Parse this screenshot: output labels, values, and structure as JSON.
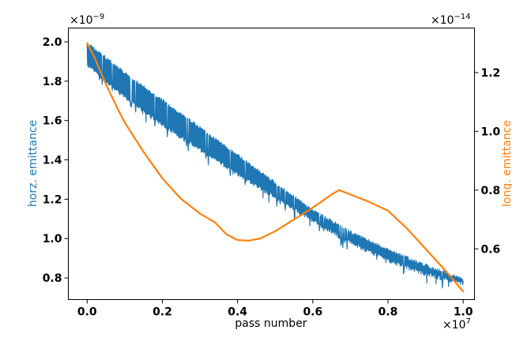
{
  "chart_data": {
    "type": "line",
    "xlabel": "pass number",
    "ylabel_left": "horz. emittance",
    "ylabel_right": "long. emittance",
    "x_multiplier": "×10",
    "x_multiplier_exp": "7",
    "y_left_multiplier": "×10",
    "y_left_multiplier_exp": "−9",
    "y_right_multiplier": "×10",
    "y_right_multiplier_exp": "−14",
    "xlim": [
      -0.05,
      1.03
    ],
    "ylim_left": [
      0.69,
      2.07
    ],
    "ylim_right": [
      0.4275,
      1.3515
    ],
    "x_ticks": [
      0.0,
      0.2,
      0.4,
      0.6,
      0.8,
      1.0
    ],
    "x_tick_labels": [
      "0.0",
      "0.2",
      "0.4",
      "0.6",
      "0.8",
      "1.0"
    ],
    "y_left_ticks": [
      0.8,
      1.0,
      1.2,
      1.4,
      1.6,
      1.8,
      2.0
    ],
    "y_left_tick_labels": [
      "0.8",
      "1.0",
      "1.2",
      "1.4",
      "1.6",
      "1.8",
      "2.0"
    ],
    "y_right_ticks": [
      0.6,
      0.8,
      1.0,
      1.2
    ],
    "y_right_tick_labels": [
      "0.6",
      "0.8",
      "1.0",
      "1.2"
    ],
    "series": [
      {
        "name": "horz. emittance",
        "axis": "left",
        "color": "#1f77b4",
        "style": "noisy band",
        "x": [
          0.0,
          0.1,
          0.2,
          0.3,
          0.4,
          0.5,
          0.6,
          0.7,
          0.8,
          0.9,
          1.0
        ],
        "upper": [
          2.0,
          1.85,
          1.71,
          1.57,
          1.43,
          1.29,
          1.15,
          1.04,
          0.95,
          0.87,
          0.8
        ],
        "lower": [
          1.87,
          1.71,
          1.57,
          1.44,
          1.32,
          1.2,
          1.08,
          0.97,
          0.88,
          0.81,
          0.76
        ]
      },
      {
        "name": "long. emittance",
        "axis": "right",
        "color": "#ff7f0e",
        "style": "line",
        "x": [
          0.0,
          0.02,
          0.05,
          0.08,
          0.1,
          0.15,
          0.2,
          0.25,
          0.3,
          0.34,
          0.37,
          0.4,
          0.43,
          0.46,
          0.5,
          0.55,
          0.6,
          0.65,
          0.67,
          0.7,
          0.75,
          0.8,
          0.85,
          0.9,
          0.95,
          1.0
        ],
        "values": [
          1.3,
          1.25,
          1.16,
          1.08,
          1.03,
          0.93,
          0.84,
          0.77,
          0.72,
          0.69,
          0.65,
          0.63,
          0.628,
          0.635,
          0.66,
          0.7,
          0.74,
          0.785,
          0.8,
          0.785,
          0.76,
          0.73,
          0.67,
          0.6,
          0.53,
          0.455
        ]
      }
    ]
  }
}
